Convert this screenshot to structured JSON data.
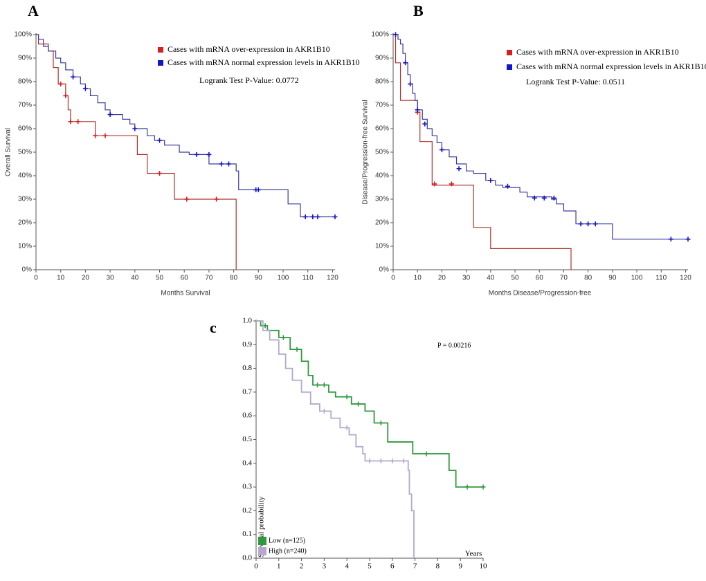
{
  "chart_data": [
    {
      "type": "line",
      "panel_label": "A",
      "x_label": "Months Survival",
      "y_label": "Overall Survival",
      "annotation": "Logrank Test P-Value: 0.0772",
      "xlim": [
        0,
        121
      ],
      "xticks": [
        0,
        10,
        20,
        30,
        40,
        50,
        60,
        70,
        80,
        90,
        100,
        110,
        120
      ],
      "ylim": [
        0,
        100
      ],
      "yticks": [
        {
          "value": 0,
          "label": "0%"
        },
        {
          "value": 10,
          "label": "10%"
        },
        {
          "value": 20,
          "label": "20%"
        },
        {
          "value": 30,
          "label": "30%"
        },
        {
          "value": 40,
          "label": "40%"
        },
        {
          "value": 50,
          "label": "50%"
        },
        {
          "value": 60,
          "label": "60%"
        },
        {
          "value": 70,
          "label": "70%"
        },
        {
          "value": 80,
          "label": "80%"
        },
        {
          "value": 90,
          "label": "90%"
        },
        {
          "value": 100,
          "label": "100%"
        }
      ],
      "series": [
        {
          "name": "Cases with mRNA over-expression in AKR1B10",
          "color": "#b0302a",
          "marker_color": "#d42020",
          "x": [
            0,
            1,
            5,
            7,
            9,
            12,
            13,
            14,
            24,
            41,
            45,
            56,
            81
          ],
          "values": [
            100,
            96,
            93,
            86,
            79,
            74,
            68,
            63,
            57,
            49,
            41,
            30,
            0
          ],
          "censored_x": [
            10,
            12,
            14,
            17,
            24,
            28,
            50,
            61,
            73
          ],
          "censored_values": [
            79,
            74,
            63,
            63,
            57,
            57,
            41,
            30,
            30
          ]
        },
        {
          "name": "Cases with mRNA normal expression levels in AKR1B10",
          "color": "#3a3a9a",
          "marker_color": "#1414c8",
          "x": [
            0,
            1,
            3,
            5,
            8,
            10,
            12,
            15,
            18,
            20,
            22,
            25,
            28,
            30,
            35,
            38,
            40,
            45,
            48,
            52,
            58,
            62,
            70,
            81,
            82,
            102,
            107,
            121
          ],
          "values": [
            100,
            98,
            95,
            93,
            90,
            88,
            85,
            82,
            79,
            77,
            74,
            71,
            68,
            66,
            64,
            62,
            60,
            57,
            55,
            53,
            50,
            49,
            45,
            42,
            34,
            28,
            22.5,
            22.5
          ],
          "censored_x": [
            15,
            20,
            30,
            40,
            50,
            65,
            70,
            75,
            78,
            89,
            90,
            109,
            112,
            114,
            121
          ],
          "censored_values": [
            82,
            77,
            66,
            60,
            55,
            49,
            49,
            45,
            45,
            34,
            34,
            22.5,
            22.5,
            22.5,
            22.5
          ]
        }
      ]
    },
    {
      "type": "line",
      "panel_label": "B",
      "x_label": "Months Disease/Progression-free",
      "y_label": "Disease/Progression-free Survival",
      "annotation": "Logrank Test P-Value: 0.0511",
      "xlim": [
        0,
        121
      ],
      "xticks": [
        0,
        10,
        20,
        30,
        40,
        50,
        60,
        70,
        80,
        90,
        100,
        110,
        120
      ],
      "ylim": [
        0,
        100
      ],
      "yticks": [
        {
          "value": 0,
          "label": "0%"
        },
        {
          "value": 10,
          "label": "10%"
        },
        {
          "value": 20,
          "label": "20%"
        },
        {
          "value": 30,
          "label": "30%"
        },
        {
          "value": 40,
          "label": "40%"
        },
        {
          "value": 50,
          "label": "50%"
        },
        {
          "value": 60,
          "label": "60%"
        },
        {
          "value": 70,
          "label": "70%"
        },
        {
          "value": 80,
          "label": "80%"
        },
        {
          "value": 90,
          "label": "90%"
        },
        {
          "value": 100,
          "label": "100%"
        }
      ],
      "series": [
        {
          "name": "Cases with mRNA over-expression in AKR1B10",
          "color": "#b0302a",
          "marker_color": "#d42020",
          "x": [
            0,
            1,
            3,
            10,
            11,
            16,
            33,
            40,
            73
          ],
          "values": [
            100,
            88,
            72,
            67,
            54.5,
            36,
            18,
            9,
            0
          ],
          "censored_x": [
            10,
            17,
            24
          ],
          "censored_values": [
            67,
            36.5,
            36.5
          ]
        },
        {
          "name": "Cases with mRNA normal expression levels in AKR1B10",
          "color": "#3a3a9a",
          "marker_color": "#1414c8",
          "x": [
            0,
            2,
            3,
            4,
            5,
            6,
            7,
            8,
            9,
            10,
            12,
            14,
            16,
            18,
            20,
            23,
            26,
            30,
            33,
            38,
            42,
            45,
            52,
            55,
            65,
            67,
            70,
            75,
            90,
            121
          ],
          "values": [
            100,
            98,
            96,
            92,
            88,
            83,
            79,
            75,
            72,
            68,
            64,
            60,
            57,
            54,
            51,
            48,
            45,
            42,
            41,
            38,
            36,
            35,
            33,
            31,
            30,
            28,
            25,
            19.5,
            13,
            13
          ],
          "censored_x": [
            1,
            5,
            7,
            10,
            13,
            20,
            27,
            40,
            47,
            58,
            62,
            66,
            77,
            80,
            83,
            114,
            121
          ],
          "censored_values": [
            100,
            88,
            79,
            68,
            62,
            51,
            43,
            38,
            35.5,
            30.5,
            30.5,
            30.5,
            19.5,
            19.5,
            19.5,
            13,
            13
          ]
        }
      ]
    },
    {
      "type": "line",
      "panel_label": "c",
      "x_label": "Years",
      "y_label": "Survival probability",
      "annotation": "P = 0.00216",
      "xlim": [
        0,
        10
      ],
      "xticks": [
        0,
        1,
        2,
        3,
        4,
        5,
        6,
        7,
        8,
        9,
        10
      ],
      "ylim": [
        0,
        1
      ],
      "yticks": [
        {
          "value": 0,
          "label": "0.0"
        },
        0.1,
        0.2,
        0.3,
        0.4,
        0.5,
        0.6,
        0.7,
        0.8,
        0.9,
        {
          "value": 1,
          "label": "1.0"
        }
      ],
      "series": [
        {
          "name": "Low (n=125)",
          "color": "#2f9a3c",
          "x": [
            0,
            0.2,
            0.5,
            1,
            1.5,
            2,
            2.3,
            2.5,
            3.2,
            3.5,
            4.2,
            4.8,
            5.2,
            5.8,
            6.9,
            8.5,
            8.8,
            10
          ],
          "values": [
            1,
            0.98,
            0.96,
            0.93,
            0.88,
            0.83,
            0.77,
            0.73,
            0.7,
            0.68,
            0.65,
            0.62,
            0.57,
            0.49,
            0.44,
            0.37,
            0.3,
            0.3
          ],
          "censored_x": [
            0.4,
            1.2,
            1.8,
            2.7,
            3,
            4,
            4.5,
            5.5,
            7.5,
            9.3,
            10
          ],
          "censored_values": [
            0.98,
            0.93,
            0.88,
            0.73,
            0.73,
            0.68,
            0.65,
            0.57,
            0.44,
            0.3,
            0.3
          ]
        },
        {
          "name": "High (n=240)",
          "color": "#b4a9cc",
          "x": [
            0,
            0.3,
            0.6,
            1,
            1.3,
            1.6,
            2,
            2.4,
            2.8,
            3.3,
            3.7,
            4.1,
            4.4,
            4.7,
            4.8,
            6.7,
            6.75,
            6.85,
            6.95
          ],
          "values": [
            1,
            0.96,
            0.92,
            0.86,
            0.8,
            0.75,
            0.7,
            0.65,
            0.62,
            0.59,
            0.55,
            0.52,
            0.47,
            0.44,
            0.41,
            0.37,
            0.27,
            0.2,
            0
          ],
          "censored_x": [
            3,
            4,
            5,
            5.5,
            6,
            6.5
          ],
          "censored_values": [
            0.62,
            0.55,
            0.41,
            0.41,
            0.41,
            0.41
          ]
        }
      ]
    }
  ]
}
